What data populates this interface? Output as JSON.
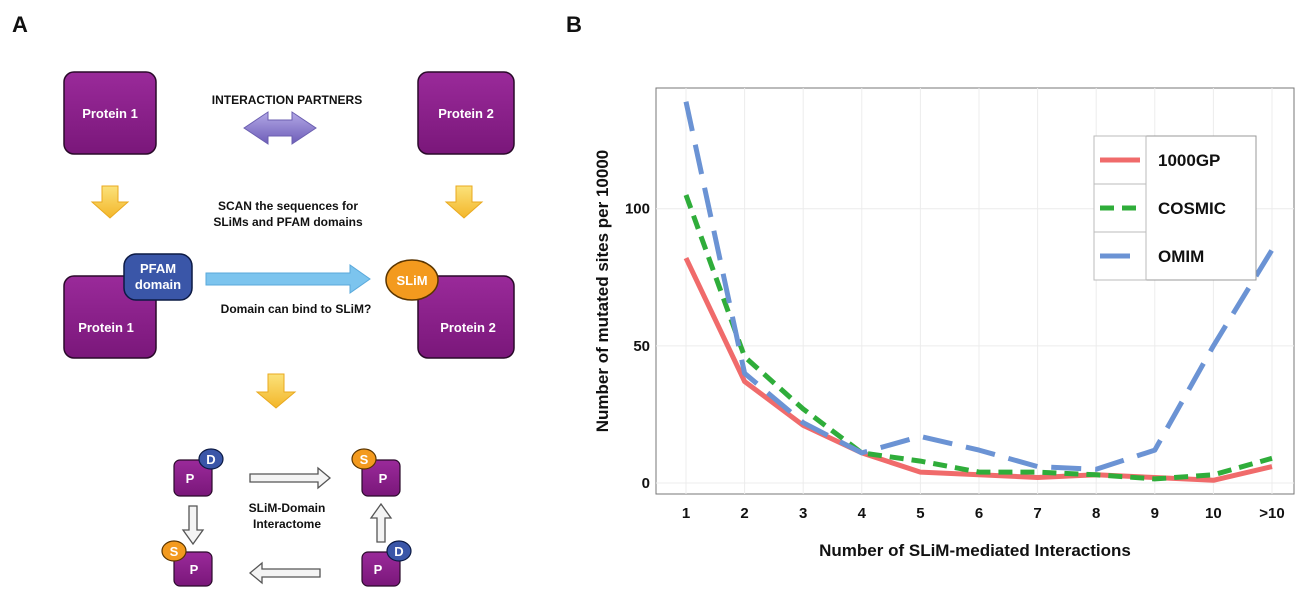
{
  "panel_a": {
    "letter": "A",
    "protein1": "Protein 1",
    "protein2": "Protein 2",
    "interaction_partners": "INTERACTION PARTNERS",
    "scan_line1": "SCAN the sequences for",
    "scan_line2": "SLiMs and PFAM domains",
    "pfam_line1": "PFAM",
    "pfam_line2": "domain",
    "slim": "SLiM",
    "bind_question": "Domain can bind to SLiM?",
    "interactome_line1": "SLiM-Domain",
    "interactome_line2": "Interactome",
    "p": "P",
    "d": "D",
    "s": "S",
    "colors": {
      "protein": "#8b1f8b",
      "pfam": "#3a56a8",
      "slim": "#f39a1e",
      "arrow_blue": "#7cc4ee",
      "arrow_yellow": "#f7cf45",
      "arrow_purple": "#8b7cc8"
    }
  },
  "chart_data": {
    "letter": "B",
    "type": "line",
    "categories": [
      "1",
      "2",
      "3",
      "4",
      "5",
      "6",
      "7",
      "8",
      "9",
      "10",
      ">10"
    ],
    "xlabel": "Number of SLiM-mediated Interactions",
    "ylabel": "Number of mutated sites per 10000",
    "y_ticks": [
      "0",
      "50",
      "100"
    ],
    "y_tick_values": [
      0,
      50,
      100
    ],
    "ylim": [
      -4,
      144
    ],
    "grid": true,
    "legend_position": "top-right",
    "series": [
      {
        "name": "1000GP",
        "color": "#f06b6b",
        "dash": "solid",
        "values": [
          82,
          37,
          21,
          11,
          4,
          3,
          2,
          3,
          2,
          1,
          6
        ]
      },
      {
        "name": "COSMIC",
        "color": "#2fad3a",
        "dash": "short",
        "values": [
          105,
          46,
          27,
          11,
          8,
          4,
          4,
          3,
          1.5,
          3,
          9
        ]
      },
      {
        "name": "OMIM",
        "color": "#6b93d4",
        "dash": "long",
        "values": [
          139,
          40,
          22,
          11,
          17,
          12,
          6,
          5,
          12,
          50,
          85
        ]
      }
    ]
  }
}
